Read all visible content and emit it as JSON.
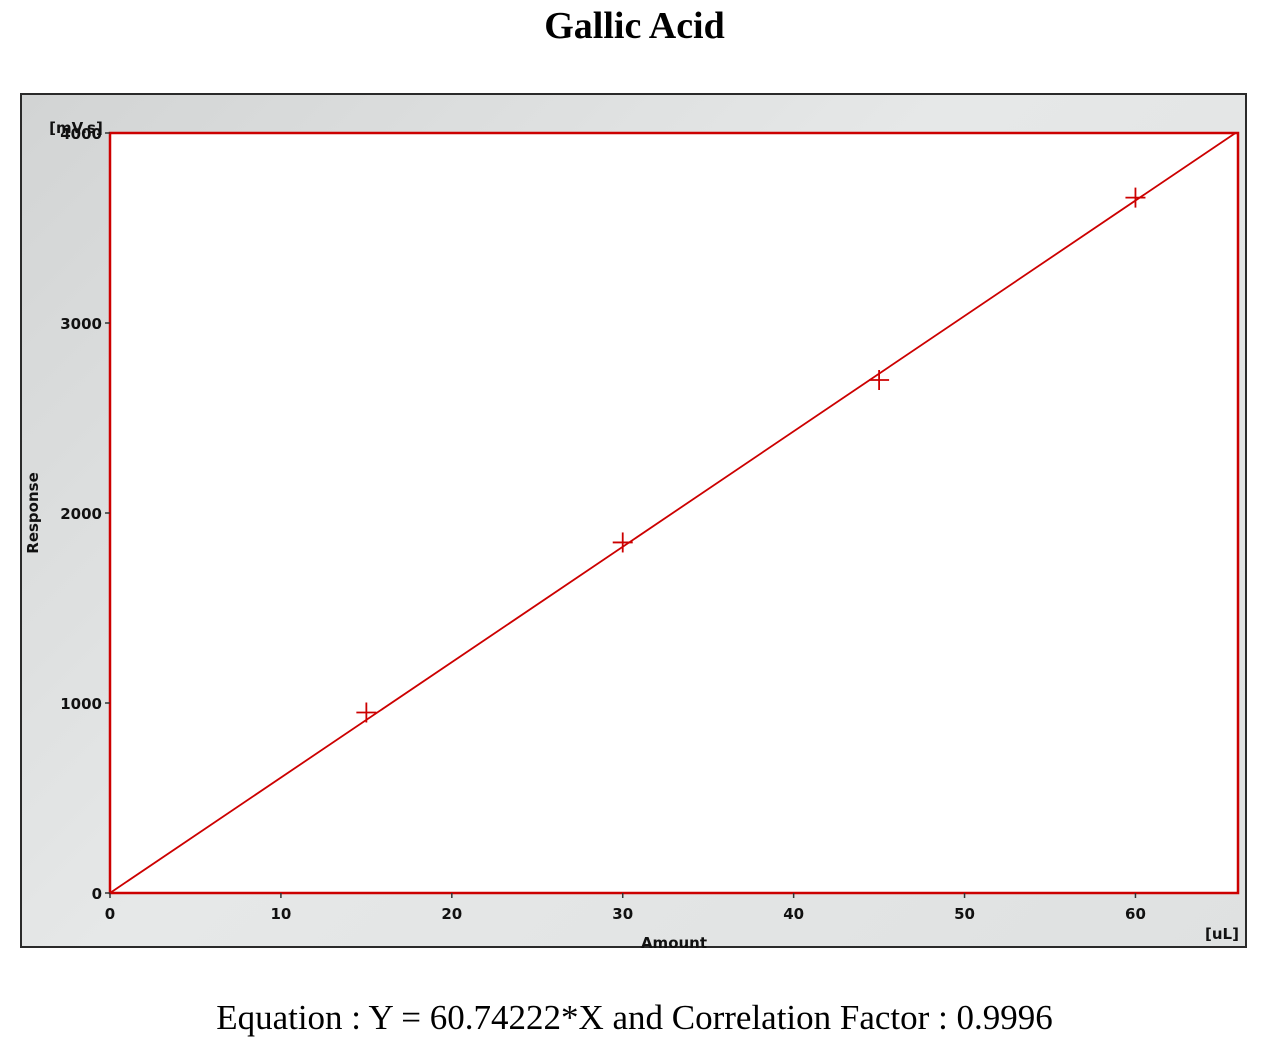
{
  "title": "Gallic Acid",
  "equation": "Equation : Y = 60.74222*X and Correlation Factor : 0.9996",
  "chart_data": {
    "type": "scatter",
    "title": "Gallic Acid",
    "xlabel": "Amount",
    "ylabel": "Response",
    "x_unit": "[uL]",
    "y_unit": "[mV.s]",
    "xlim": [
      0,
      66
    ],
    "ylim": [
      0,
      4000
    ],
    "x_ticks": [
      0,
      10,
      20,
      30,
      40,
      50,
      60
    ],
    "y_ticks": [
      0,
      1000,
      2000,
      3000,
      4000
    ],
    "grid": false,
    "series": [
      {
        "marker": "plus",
        "color": "#cc0000",
        "x": [
          15,
          30,
          45,
          60
        ],
        "y": [
          950,
          1845,
          2700,
          3660
        ]
      }
    ],
    "fit_line": {
      "slope": 60.74222,
      "intercept": 0,
      "color": "#cc0000"
    },
    "colors": {
      "plot_border": "#cc0000",
      "data": "#cc0000"
    }
  }
}
